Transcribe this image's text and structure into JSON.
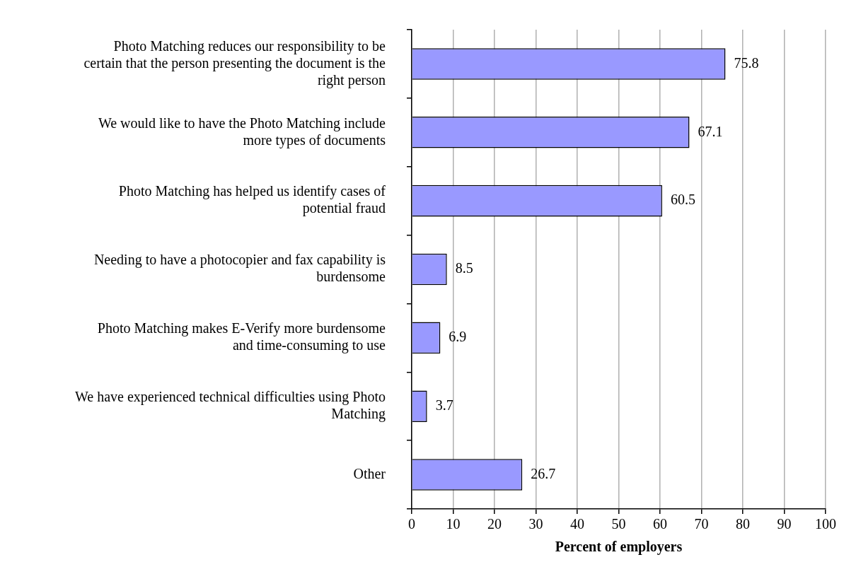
{
  "chart_data": {
    "type": "bar",
    "orientation": "horizontal",
    "xlabel": "Percent of employers",
    "categories": [
      "Photo Matching reduces our responsibility to be certain that the person presenting the document is the right person",
      "We would like to have the Photo Matching include more types of documents",
      "Photo Matching has helped us identify cases of potential fraud",
      "Needing to have a photocopier and fax capability is burdensome",
      "Photo Matching makes E-Verify more burdensome and time-consuming to use",
      "We have experienced technical difficulties using Photo Matching",
      "Other"
    ],
    "values": [
      75.8,
      67.1,
      60.5,
      8.5,
      6.9,
      3.7,
      26.7
    ],
    "color": "#9999ff",
    "xlim": [
      0,
      100
    ],
    "xticks": [
      0,
      10,
      20,
      30,
      40,
      50,
      60,
      70,
      80,
      90,
      100
    ],
    "grid": "x",
    "data_labels": true,
    "legend": false
  }
}
